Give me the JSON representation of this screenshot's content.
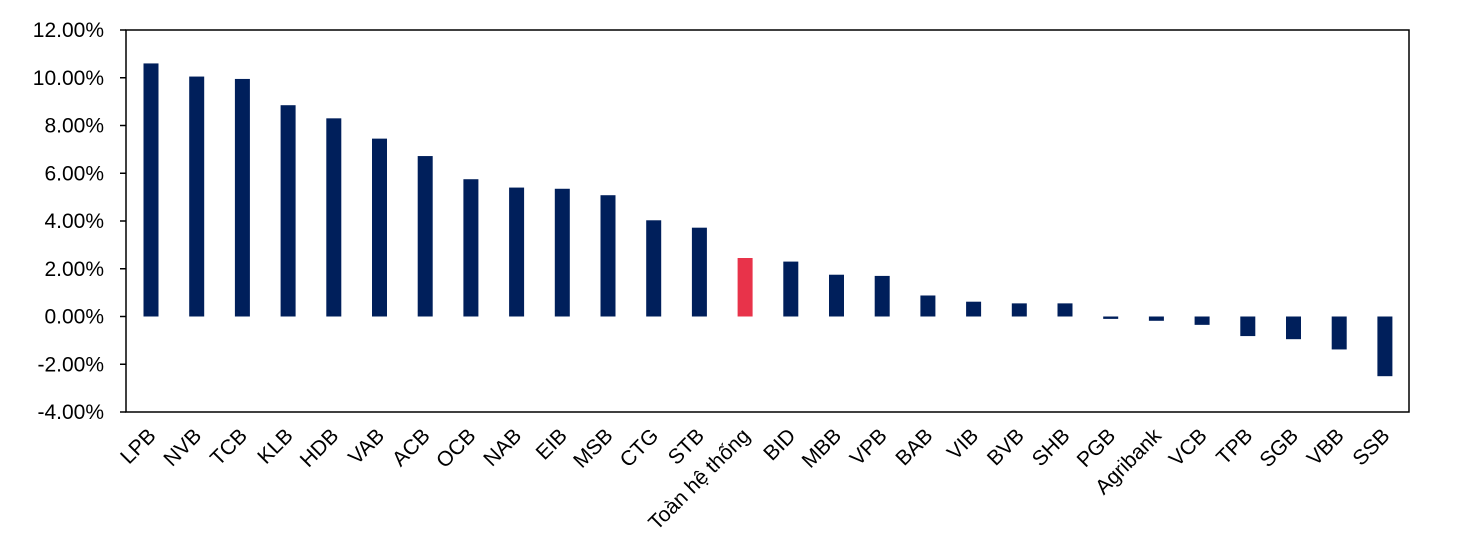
{
  "chart_data": {
    "type": "bar",
    "title": "",
    "xlabel": "",
    "ylabel": "",
    "ylim": [
      -4,
      12
    ],
    "yticks": [
      -4,
      -2,
      0,
      2,
      4,
      6,
      8,
      10,
      12
    ],
    "ytick_labels": [
      "-4.00%",
      "-2.00%",
      "0.00%",
      "2.00%",
      "4.00%",
      "6.00%",
      "8.00%",
      "10.00%",
      "12.00%"
    ],
    "grid": false,
    "legend": "none",
    "categories": [
      "LPB",
      "NVB",
      "TCB",
      "KLB",
      "HDB",
      "VAB",
      "ACB",
      "OCB",
      "NAB",
      "EIB",
      "MSB",
      "CTG",
      "STB",
      "Toàn hệ thống",
      "BID",
      "MBB",
      "VPB",
      "BAB",
      "VIB",
      "BVB",
      "SHB",
      "PGB",
      "Agribank",
      "VCB",
      "TPB",
      "SGB",
      "VBB",
      "SSB"
    ],
    "values": [
      10.6,
      10.05,
      9.95,
      8.85,
      8.3,
      7.45,
      6.72,
      5.75,
      5.4,
      5.35,
      5.08,
      4.03,
      3.72,
      2.45,
      2.3,
      1.75,
      1.7,
      0.88,
      0.62,
      0.55,
      0.55,
      -0.1,
      -0.18,
      -0.35,
      -0.82,
      -0.95,
      -1.38,
      -2.5
    ],
    "highlight_category": "Toàn hệ thống",
    "colors": {
      "bar": "#001F5B",
      "highlight": "#E8334A",
      "axis": "#000000"
    }
  }
}
